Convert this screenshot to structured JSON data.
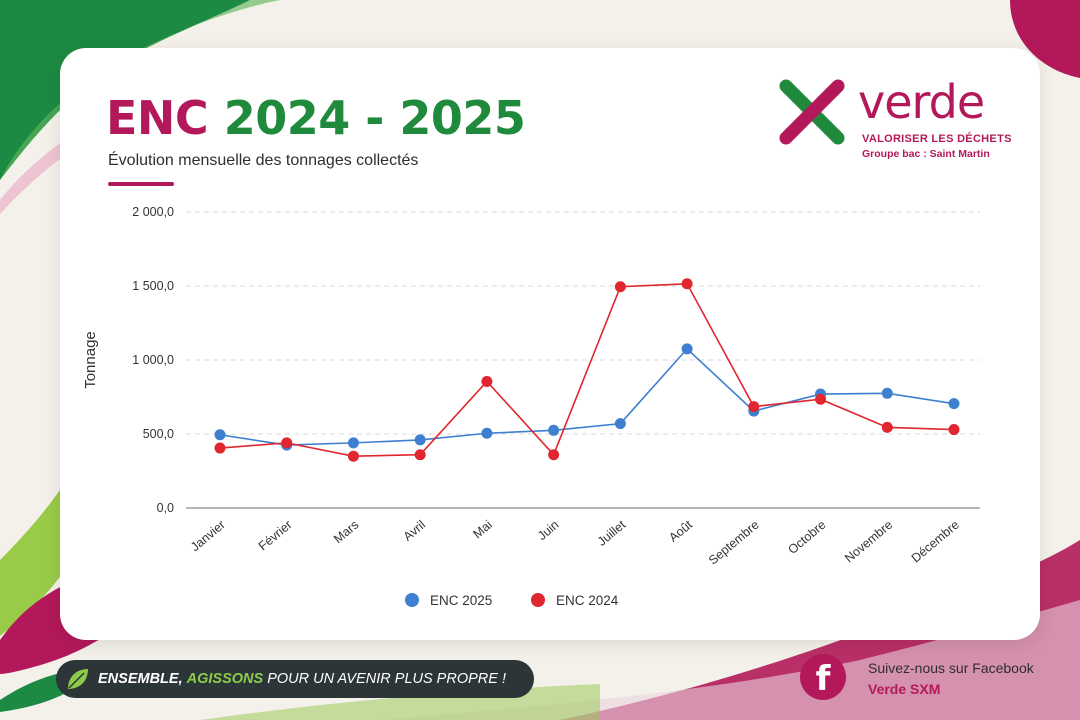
{
  "header": {
    "title_brand": "ENC",
    "title_years": "2024 - 2025",
    "subtitle": "Évolution mensuelle des tonnages collectés"
  },
  "logo": {
    "name": "verde",
    "tagline": "VALORISER LES DÉCHETS",
    "group": "Groupe bac : Saint Martin"
  },
  "footer": {
    "slogan_part1": "ENSEMBLE,",
    "slogan_part2": "AGISSONS",
    "slogan_part3": "POUR UN AVENIR PLUS PROPRE !",
    "facebook_prompt": "Suivez-nous sur Facebook",
    "facebook_page": "Verde SXM"
  },
  "colors": {
    "brand_magenta": "#b3195a",
    "brand_green": "#1f8a3c",
    "series_2025": "#3f7fd0",
    "series_2024": "#e0262e"
  },
  "icons": [
    "verde-x-logo-icon",
    "leaf-icon",
    "facebook-icon"
  ],
  "chart_data": {
    "type": "line",
    "title": "",
    "xlabel": "",
    "ylabel": "Tonnage",
    "ylim": [
      0,
      2000
    ],
    "yticks": [
      0,
      500,
      1000,
      1500,
      2000
    ],
    "ytick_labels": [
      "0,0",
      "500,0",
      "1 000,0",
      "1 500,0",
      "2 000,0"
    ],
    "grid": true,
    "legend_position": "bottom",
    "categories": [
      "Janvier",
      "Février",
      "Mars",
      "Avril",
      "Mai",
      "Juin",
      "Juillet",
      "Août",
      "Septembre",
      "Octobre",
      "Novembre",
      "Décembre"
    ],
    "series": [
      {
        "name": "ENC 2025",
        "color": "#3f7fd0",
        "values": [
          495,
          425,
          440,
          460,
          505,
          525,
          570,
          1075,
          655,
          770,
          775,
          705
        ]
      },
      {
        "name": "ENC 2024",
        "color": "#e0262e",
        "values": [
          405,
          440,
          350,
          360,
          855,
          360,
          1495,
          1515,
          685,
          735,
          545,
          530
        ]
      }
    ]
  }
}
